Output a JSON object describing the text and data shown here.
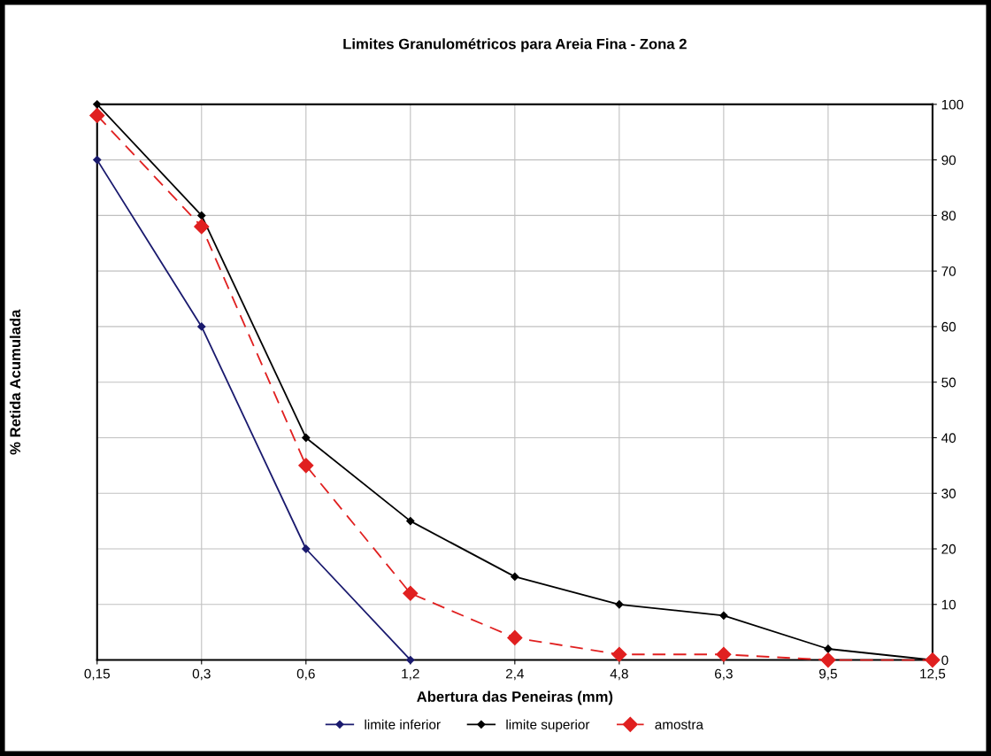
{
  "chart_data": {
    "type": "line",
    "title": "Limites Granulométricos para Areia Fina - Zona 2",
    "xlabel": "Abertura das Peneiras (mm)",
    "ylabel": "% Retida Acumulada",
    "categories": [
      "0,15",
      "0,3",
      "0,6",
      "1,2",
      "2,4",
      "4,8",
      "6,3",
      "9,5",
      "12,5"
    ],
    "series": [
      {
        "name": "limite inferior",
        "color": "#1a1a6e",
        "values": [
          90,
          60,
          20,
          0,
          null,
          null,
          null,
          null,
          null
        ],
        "marker": "diamond",
        "line_style": "solid"
      },
      {
        "name": "limite superior",
        "color": "#000000",
        "values": [
          100,
          80,
          40,
          25,
          15,
          10,
          8,
          2,
          0
        ],
        "marker": "diamond",
        "line_style": "solid"
      },
      {
        "name": "amostra",
        "color": "#e02020",
        "values": [
          98,
          78,
          35,
          12,
          4,
          1,
          1,
          0,
          0
        ],
        "marker": "diamond",
        "line_style": "dashed"
      }
    ],
    "ylim": [
      0,
      100
    ],
    "yticks": [
      0,
      10,
      20,
      30,
      40,
      50,
      60,
      70,
      80,
      90,
      100
    ],
    "grid": true,
    "legend": "bottom"
  }
}
